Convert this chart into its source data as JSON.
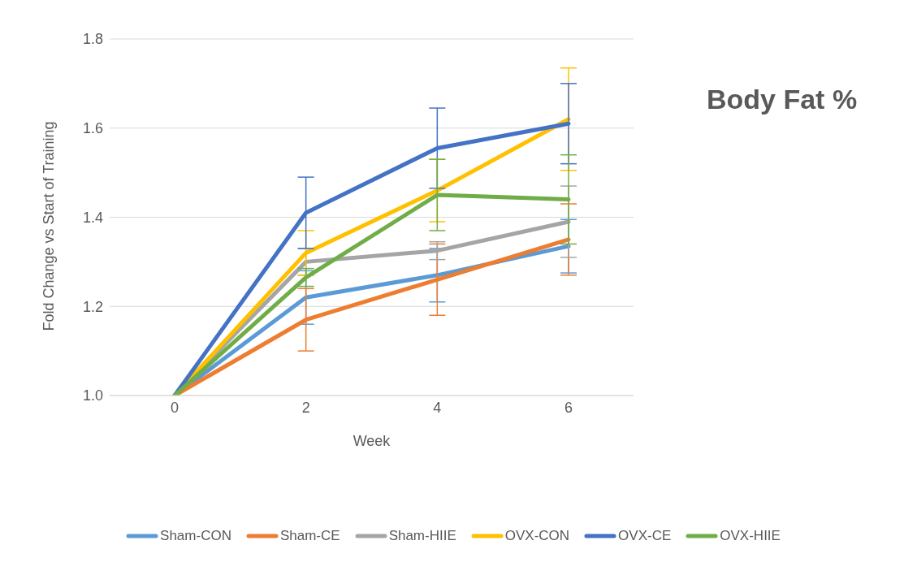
{
  "chart_data": {
    "type": "line",
    "title": "Body Fat %",
    "xlabel": "Week",
    "ylabel": "Fold Change vs Start of Training",
    "categories": [
      "0",
      "2",
      "4",
      "6"
    ],
    "series": [
      {
        "name": "Sham-CON",
        "color": "#5b9bd5",
        "values": [
          1.0,
          1.22,
          1.27,
          1.335
        ],
        "errors": [
          null,
          0.06,
          0.06,
          0.06
        ]
      },
      {
        "name": "Sham-CE",
        "color": "#ed7d31",
        "values": [
          1.0,
          1.17,
          1.26,
          1.35
        ],
        "errors": [
          null,
          0.07,
          0.08,
          0.08
        ]
      },
      {
        "name": "Sham-HIIE",
        "color": "#a5a5a5",
        "values": [
          1.0,
          1.3,
          1.325,
          1.39
        ],
        "errors": [
          null,
          0.03,
          0.02,
          0.08
        ]
      },
      {
        "name": "OVX-CON",
        "color": "#ffc000",
        "values": [
          1.0,
          1.32,
          1.46,
          1.62
        ],
        "errors": [
          null,
          0.05,
          0.07,
          0.115
        ]
      },
      {
        "name": "OVX-CE",
        "color": "#4472c4",
        "values": [
          1.0,
          1.41,
          1.555,
          1.61
        ],
        "errors": [
          null,
          0.08,
          0.09,
          0.09
        ]
      },
      {
        "name": "OVX-HIIE",
        "color": "#70ad47",
        "values": [
          1.0,
          1.265,
          1.45,
          1.44
        ],
        "errors": [
          null,
          0.02,
          0.08,
          0.1
        ]
      }
    ],
    "ylim": [
      1.0,
      1.8
    ],
    "yticks": [
      {
        "value": 1.0,
        "label": "1.0"
      },
      {
        "value": 1.2,
        "label": "1.2"
      },
      {
        "value": 1.4,
        "label": "1.4"
      },
      {
        "value": 1.6,
        "label": "1.6"
      },
      {
        "value": 1.8,
        "label": "1.8"
      }
    ],
    "grid": "y",
    "legend": "bottom",
    "marker": "none",
    "line_style": "solid"
  }
}
